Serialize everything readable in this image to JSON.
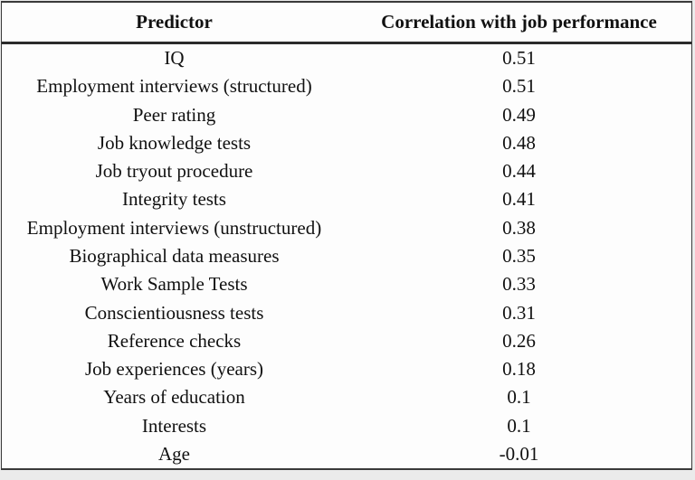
{
  "table": {
    "columns": [
      "Predictor",
      "Correlation with job performance"
    ],
    "rows": [
      {
        "predictor": "IQ",
        "correlation": "0.51"
      },
      {
        "predictor": "Employment interviews (structured)",
        "correlation": "0.51"
      },
      {
        "predictor": "Peer rating",
        "correlation": "0.49"
      },
      {
        "predictor": "Job knowledge tests",
        "correlation": "0.48"
      },
      {
        "predictor": "Job tryout procedure",
        "correlation": "0.44"
      },
      {
        "predictor": "Integrity tests",
        "correlation": "0.41"
      },
      {
        "predictor": "Employment interviews (unstructured)",
        "correlation": "0.38"
      },
      {
        "predictor": "Biographical data measures",
        "correlation": "0.35"
      },
      {
        "predictor": "Work Sample Tests",
        "correlation": "0.33"
      },
      {
        "predictor": "Conscientiousness tests",
        "correlation": "0.31"
      },
      {
        "predictor": "Reference checks",
        "correlation": "0.26"
      },
      {
        "predictor": "Job experiences (years)",
        "correlation": "0.18"
      },
      {
        "predictor": "Years of education",
        "correlation": "0.1"
      },
      {
        "predictor": "Interests",
        "correlation": "0.1"
      },
      {
        "predictor": "Age",
        "correlation": "-0.01"
      }
    ]
  },
  "chart_data": {
    "type": "table",
    "title": "",
    "columns": [
      "Predictor",
      "Correlation with job performance"
    ],
    "categories": [
      "IQ",
      "Employment interviews (structured)",
      "Peer rating",
      "Job knowledge tests",
      "Job tryout procedure",
      "Integrity tests",
      "Employment interviews (unstructured)",
      "Biographical data measures",
      "Work Sample Tests",
      "Conscientiousness tests",
      "Reference checks",
      "Job experiences (years)",
      "Years of education",
      "Interests",
      "Age"
    ],
    "values": [
      0.51,
      0.51,
      0.49,
      0.48,
      0.44,
      0.41,
      0.38,
      0.35,
      0.33,
      0.31,
      0.26,
      0.18,
      0.1,
      0.1,
      -0.01
    ]
  },
  "colors": {
    "table_background": "#fdfdfd",
    "outer_background": "#ebebeb",
    "border": "#3a3a3a",
    "header_rule": "#2b2b2b",
    "text": "#111111"
  }
}
